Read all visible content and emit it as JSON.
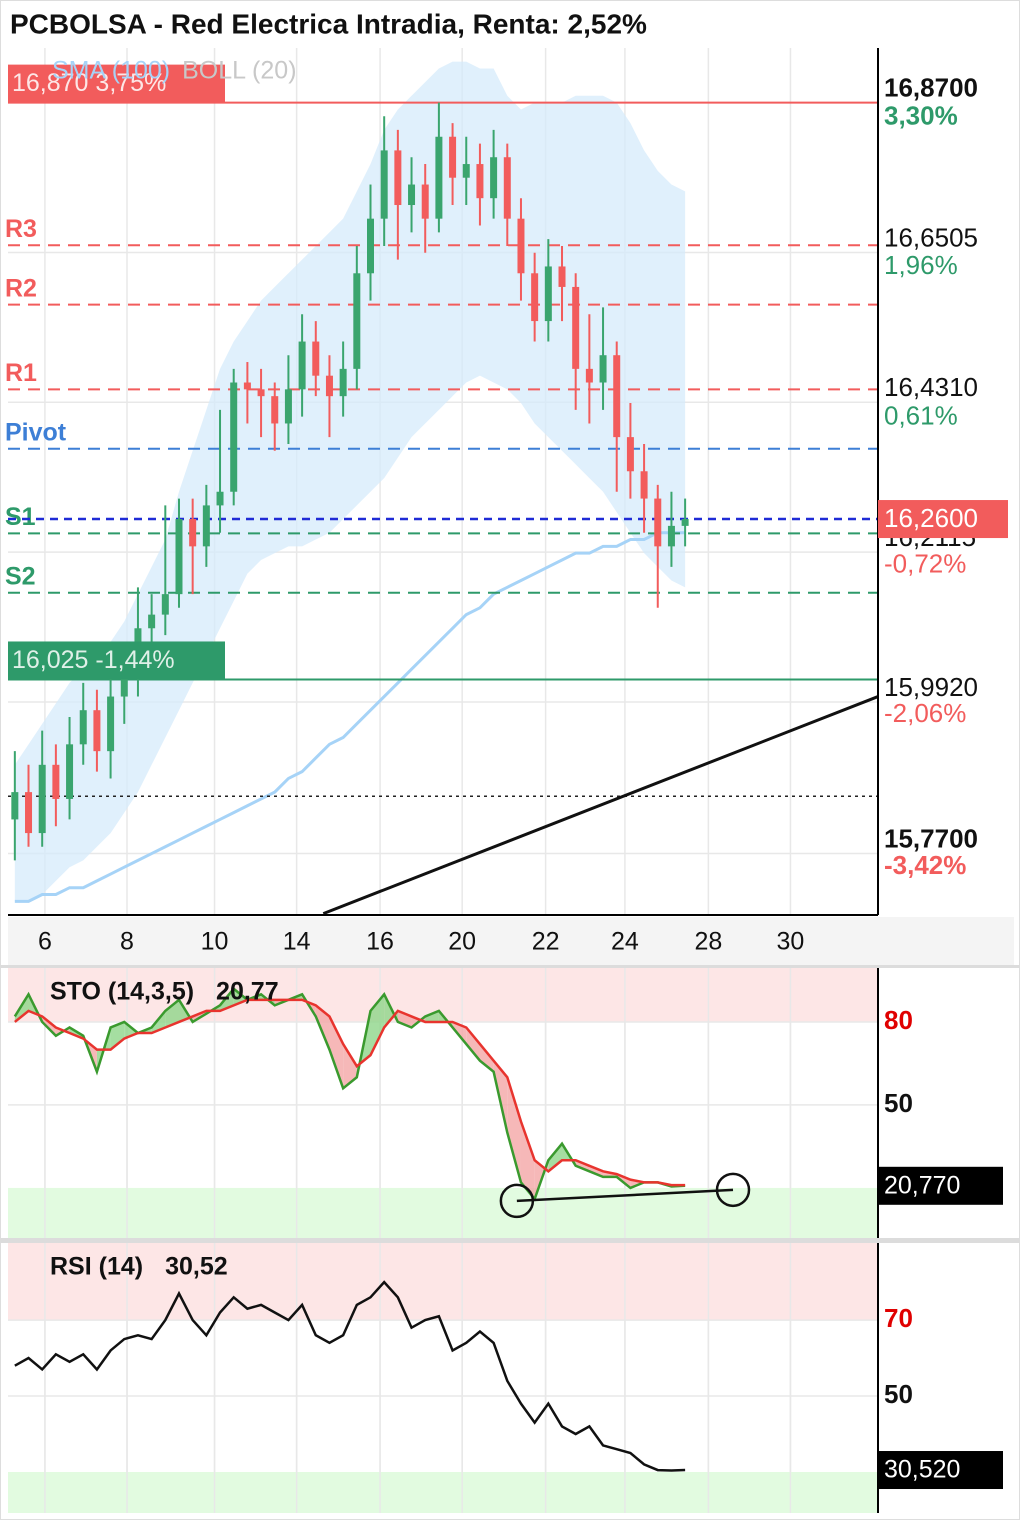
{
  "title": "PCBOLSA - Red Electrica Intradia, Renta: 2,52%",
  "chart_data": [
    {
      "type": "candlestick",
      "xlim": [
        0,
        63.6
      ],
      "xticks": [
        {
          "value": 2.7,
          "label": "6"
        },
        {
          "value": 8.7,
          "label": "8"
        },
        {
          "value": 15.1,
          "label": "10"
        },
        {
          "value": 21.1,
          "label": "14"
        },
        {
          "value": 27.2,
          "label": "16"
        },
        {
          "value": 33.2,
          "label": "20"
        },
        {
          "value": 39.3,
          "label": "22"
        },
        {
          "value": 45.1,
          "label": "24"
        },
        {
          "value": 51.2,
          "label": "28"
        },
        {
          "value": 57.2,
          "label": "30"
        }
      ],
      "ylim": [
        15.68,
        16.95
      ],
      "yticks": [
        {
          "value": 16.87,
          "label": "16,8700"
        },
        {
          "value": 16.6505,
          "label": "16,6505"
        },
        {
          "value": 16.431,
          "label": "16,4310"
        },
        {
          "value": 16.2115,
          "label": "16,2115"
        },
        {
          "value": 15.992,
          "label": "15,9920"
        },
        {
          "value": 15.77,
          "label": "15,7700"
        }
      ],
      "y2lim": [
        -3.986,
        3.79
      ],
      "y2ticks": [
        {
          "value": 3.3,
          "label": "3,30%"
        },
        {
          "value": 1.96,
          "label": "1,96%"
        },
        {
          "value": 0.61,
          "label": "0,61%"
        },
        {
          "value": -0.72,
          "label": "-0,72%"
        },
        {
          "value": -2.06,
          "label": "-2,06%"
        },
        {
          "value": -3.42,
          "label": "-3,42%"
        }
      ],
      "grid": true,
      "up_color": "#3aa56e",
      "down_color": "#f25c5c",
      "open": [
        15.82,
        15.86,
        15.8,
        15.9,
        15.85,
        15.93,
        15.98,
        15.92,
        16.0,
        16.03,
        16.1,
        16.12,
        16.15,
        16.26,
        16.22,
        16.28,
        16.3,
        16.46,
        16.45,
        16.44,
        16.4,
        16.45,
        16.52,
        16.47,
        16.44,
        16.48,
        16.62,
        16.7,
        16.8,
        16.72,
        16.75,
        16.7,
        16.82,
        16.76,
        16.78,
        16.73,
        16.79,
        16.7,
        16.62,
        16.55,
        16.63,
        16.6,
        16.48,
        16.46,
        16.5,
        16.38,
        16.33,
        16.29,
        16.22,
        16.25
      ],
      "high": [
        15.92,
        15.9,
        15.95,
        15.93,
        15.97,
        16.02,
        16.01,
        16.04,
        16.08,
        16.16,
        16.15,
        16.28,
        16.29,
        16.29,
        16.31,
        16.42,
        16.48,
        16.49,
        16.48,
        16.46,
        16.5,
        16.56,
        16.55,
        16.5,
        16.52,
        16.66,
        16.75,
        16.85,
        16.83,
        16.79,
        16.78,
        16.87,
        16.84,
        16.82,
        16.81,
        16.83,
        16.81,
        16.73,
        16.65,
        16.67,
        16.66,
        16.62,
        16.56,
        16.57,
        16.52,
        16.43,
        16.37,
        16.31,
        16.3,
        16.29
      ],
      "low": [
        15.76,
        15.78,
        15.78,
        15.81,
        15.82,
        15.9,
        15.89,
        15.88,
        15.96,
        16.0,
        16.06,
        16.09,
        16.13,
        16.15,
        16.19,
        16.24,
        16.28,
        16.4,
        16.38,
        16.36,
        16.37,
        16.41,
        16.44,
        16.38,
        16.41,
        16.45,
        16.58,
        16.66,
        16.64,
        16.68,
        16.65,
        16.68,
        16.72,
        16.72,
        16.69,
        16.7,
        16.66,
        16.58,
        16.52,
        16.52,
        16.55,
        16.42,
        16.4,
        16.42,
        16.3,
        16.29,
        16.24,
        16.13,
        16.19,
        16.22
      ],
      "close": [
        15.86,
        15.8,
        15.9,
        15.85,
        15.93,
        15.98,
        15.92,
        16.0,
        16.03,
        16.1,
        16.12,
        16.15,
        16.26,
        16.22,
        16.28,
        16.3,
        16.46,
        16.45,
        16.44,
        16.4,
        16.45,
        16.52,
        16.47,
        16.44,
        16.48,
        16.62,
        16.7,
        16.8,
        16.72,
        16.75,
        16.7,
        16.82,
        16.76,
        16.78,
        16.73,
        16.79,
        16.7,
        16.62,
        16.55,
        16.63,
        16.6,
        16.48,
        16.46,
        16.5,
        16.38,
        16.33,
        16.29,
        16.22,
        16.25,
        16.26
      ],
      "sma": {
        "name": "SMA (100)",
        "color": "#a6d3f7",
        "values": [
          15.7,
          15.7,
          15.71,
          15.71,
          15.72,
          15.72,
          15.73,
          15.74,
          15.75,
          15.76,
          15.77,
          15.78,
          15.79,
          15.8,
          15.81,
          15.82,
          15.83,
          15.84,
          15.85,
          15.86,
          15.88,
          15.89,
          15.91,
          15.93,
          15.94,
          15.96,
          15.98,
          16.0,
          16.02,
          16.04,
          16.06,
          16.08,
          16.1,
          16.12,
          16.13,
          16.15,
          16.16,
          16.17,
          16.18,
          16.19,
          16.2,
          16.21,
          16.21,
          16.22,
          16.22,
          16.23,
          16.23,
          16.24,
          16.24,
          16.24
        ]
      },
      "boll": {
        "name": "BOLL (20)",
        "color": "#d6ebfb",
        "label_color": "#c8c8c8",
        "upper": [
          15.9,
          15.93,
          15.96,
          15.99,
          16.02,
          16.04,
          16.06,
          16.08,
          16.11,
          16.15,
          16.19,
          16.23,
          16.3,
          16.36,
          16.42,
          16.48,
          16.52,
          16.55,
          16.58,
          16.6,
          16.62,
          16.64,
          16.66,
          16.68,
          16.7,
          16.74,
          16.78,
          16.83,
          16.86,
          16.88,
          16.9,
          16.92,
          16.93,
          16.93,
          16.92,
          16.92,
          16.88,
          16.86,
          16.87,
          16.87,
          16.87,
          16.88,
          16.88,
          16.88,
          16.87,
          16.84,
          16.8,
          16.77,
          16.75,
          16.74
        ],
        "lower": [
          15.7,
          15.7,
          15.71,
          15.73,
          15.75,
          15.76,
          15.78,
          15.8,
          15.83,
          15.86,
          15.9,
          15.94,
          15.98,
          16.02,
          16.06,
          16.1,
          16.14,
          16.18,
          16.2,
          16.21,
          16.22,
          16.22,
          16.23,
          16.24,
          16.26,
          16.28,
          16.3,
          16.32,
          16.35,
          16.38,
          16.4,
          16.42,
          16.44,
          16.46,
          16.47,
          16.46,
          16.45,
          16.43,
          16.4,
          16.38,
          16.36,
          16.34,
          16.32,
          16.3,
          16.27,
          16.24,
          16.21,
          16.19,
          16.17,
          16.16
        ]
      },
      "levels": [
        {
          "name": "R3",
          "value": 16.661,
          "color": "#f25c5c"
        },
        {
          "name": "R2",
          "value": 16.574,
          "color": "#f25c5c"
        },
        {
          "name": "R1",
          "value": 16.45,
          "color": "#f25c5c"
        },
        {
          "name": "Pivot",
          "value": 16.363,
          "color": "#3d7fd6"
        },
        {
          "name": "S1",
          "value": 16.239,
          "color": "#2e9a6a"
        },
        {
          "name": "S2",
          "value": 16.152,
          "color": "#2e9a6a"
        }
      ],
      "price_markers": [
        {
          "value": 16.87,
          "label": "16,870  3,75%",
          "color": "#f25c5c"
        },
        {
          "value": 16.025,
          "label": "16,025  -1,44%",
          "color": "#2e9a6a"
        }
      ],
      "last": {
        "value": 16.26,
        "label": "16,2600",
        "color": "#f25c5c",
        "line_color": "#1f2bd6"
      },
      "dotted_line": 15.854,
      "trendline": {
        "x": [
          23.05,
          63.6
        ],
        "y": [
          15.682,
          16.0
        ]
      }
    },
    {
      "type": "stochastic",
      "title": "STO (14,3,5)",
      "ylim": [
        1.9,
        99.5
      ],
      "yticks": [
        80,
        50
      ],
      "overbought": 80,
      "oversold": 20,
      "series": [
        {
          "color": "#3a9a2e",
          "values": [
            82,
            90,
            80,
            75,
            78,
            75,
            62,
            78,
            80,
            76,
            78,
            84,
            88,
            80,
            83,
            86,
            92,
            88,
            90,
            86,
            88,
            90,
            82,
            70,
            56,
            60,
            84,
            90,
            80,
            78,
            82,
            84,
            78,
            72,
            66,
            62,
            40,
            22,
            16,
            30,
            36,
            28,
            26,
            24,
            24,
            20,
            22,
            22,
            20.5,
            20.77
          ]
        },
        {
          "color": "#e8342e",
          "values": [
            80,
            84,
            82,
            78,
            76,
            74,
            70,
            70,
            74,
            76,
            76,
            78,
            80,
            82,
            84,
            84,
            86,
            88,
            88,
            88,
            88,
            88,
            86,
            82,
            72,
            64,
            68,
            78,
            84,
            82,
            80,
            80,
            80,
            78,
            72,
            66,
            60,
            44,
            30,
            26,
            30,
            30,
            28,
            26,
            25,
            23,
            22,
            22,
            21,
            21
          ]
        }
      ],
      "trendline": {
        "x": [
          37.2,
          53.0
        ],
        "y": [
          15.3,
          19.3
        ]
      },
      "last": {
        "value": 20.77,
        "label": "20,770",
        "legend_label": "20,77"
      }
    },
    {
      "type": "line",
      "title": "RSI (14)",
      "ylim": [
        19.2,
        90.3
      ],
      "yticks": [
        70,
        50
      ],
      "overbought": 70,
      "oversold": 30,
      "series": [
        {
          "color": "#111111",
          "values": [
            58,
            60,
            57,
            61,
            59,
            61,
            57,
            62,
            65,
            66,
            65,
            70,
            77,
            70,
            66,
            72,
            76,
            73,
            74,
            72,
            70,
            74,
            66,
            64,
            66,
            74,
            76,
            80,
            76,
            68,
            70,
            71,
            62,
            64,
            67,
            64,
            54,
            48,
            43,
            48,
            42,
            40,
            42,
            37,
            36,
            35,
            32,
            30.5,
            30.4,
            30.52
          ]
        }
      ],
      "last": {
        "value": 30.52,
        "label": "30,520",
        "legend_label": "30,52"
      }
    }
  ]
}
